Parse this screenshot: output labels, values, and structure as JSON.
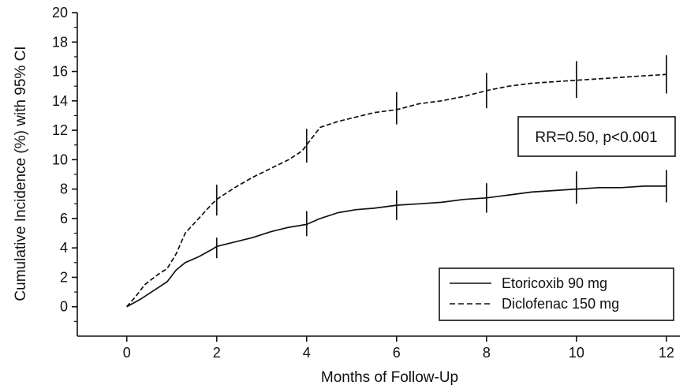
{
  "chart_data": {
    "type": "line",
    "title": "",
    "xlabel": "Months of Follow-Up",
    "ylabel": "Cumulative Incidence (%) with 95% CI",
    "xlim": [
      -1.1,
      12.3
    ],
    "ylim": [
      -2,
      20
    ],
    "x_ticks": [
      0,
      2,
      4,
      6,
      8,
      10,
      12
    ],
    "y_ticks": [
      0,
      2,
      4,
      6,
      8,
      10,
      12,
      14,
      16,
      18,
      20
    ],
    "grid": false,
    "legend_position": "bottom-right",
    "annotation": "RR=0.50, p<0.001",
    "series": [
      {
        "name": "Etoricoxib 90 mg",
        "style": "solid",
        "color": "#111111",
        "points": [
          [
            0,
            0
          ],
          [
            0.3,
            0.5
          ],
          [
            0.6,
            1.1
          ],
          [
            0.9,
            1.7
          ],
          [
            1.1,
            2.5
          ],
          [
            1.3,
            3.0
          ],
          [
            1.6,
            3.4
          ],
          [
            1.9,
            3.9
          ],
          [
            2.0,
            4.1
          ],
          [
            2.4,
            4.4
          ],
          [
            2.8,
            4.7
          ],
          [
            3.2,
            5.1
          ],
          [
            3.6,
            5.4
          ],
          [
            4.0,
            5.6
          ],
          [
            4.3,
            6.0
          ],
          [
            4.7,
            6.4
          ],
          [
            5.1,
            6.6
          ],
          [
            5.5,
            6.7
          ],
          [
            6.0,
            6.9
          ],
          [
            6.5,
            7.0
          ],
          [
            7.0,
            7.1
          ],
          [
            7.5,
            7.3
          ],
          [
            8.0,
            7.4
          ],
          [
            8.5,
            7.6
          ],
          [
            9.0,
            7.8
          ],
          [
            9.5,
            7.9
          ],
          [
            10.0,
            8.0
          ],
          [
            10.5,
            8.1
          ],
          [
            11.0,
            8.1
          ],
          [
            11.5,
            8.2
          ],
          [
            12.0,
            8.2
          ]
        ],
        "ci": [
          [
            2,
            3.3,
            4.7
          ],
          [
            4,
            4.8,
            6.5
          ],
          [
            6,
            5.9,
            7.9
          ],
          [
            8,
            6.4,
            8.4
          ],
          [
            10,
            7.0,
            9.2
          ],
          [
            12,
            7.1,
            9.3
          ]
        ]
      },
      {
        "name": "Diclofenac 150 mg",
        "style": "dashed",
        "color": "#111111",
        "points": [
          [
            0,
            0
          ],
          [
            0.2,
            0.7
          ],
          [
            0.4,
            1.5
          ],
          [
            0.7,
            2.2
          ],
          [
            0.9,
            2.6
          ],
          [
            1.1,
            3.6
          ],
          [
            1.3,
            5.0
          ],
          [
            1.6,
            6.0
          ],
          [
            1.9,
            7.0
          ],
          [
            2.0,
            7.3
          ],
          [
            2.4,
            8.1
          ],
          [
            2.8,
            8.8
          ],
          [
            3.2,
            9.4
          ],
          [
            3.6,
            10.0
          ],
          [
            3.9,
            10.6
          ],
          [
            4.0,
            11.0
          ],
          [
            4.3,
            12.2
          ],
          [
            4.7,
            12.6
          ],
          [
            5.1,
            12.9
          ],
          [
            5.5,
            13.2
          ],
          [
            6.0,
            13.4
          ],
          [
            6.5,
            13.8
          ],
          [
            7.0,
            14.0
          ],
          [
            7.5,
            14.3
          ],
          [
            8.0,
            14.7
          ],
          [
            8.5,
            15.0
          ],
          [
            9.0,
            15.2
          ],
          [
            9.5,
            15.3
          ],
          [
            10.0,
            15.4
          ],
          [
            10.5,
            15.5
          ],
          [
            11.0,
            15.6
          ],
          [
            11.5,
            15.7
          ],
          [
            12.0,
            15.8
          ]
        ],
        "ci": [
          [
            2,
            6.2,
            8.3
          ],
          [
            4,
            9.8,
            12.1
          ],
          [
            6,
            12.4,
            14.6
          ],
          [
            8,
            13.5,
            15.9
          ],
          [
            10,
            14.2,
            16.7
          ],
          [
            12,
            14.5,
            17.1
          ]
        ]
      }
    ]
  }
}
